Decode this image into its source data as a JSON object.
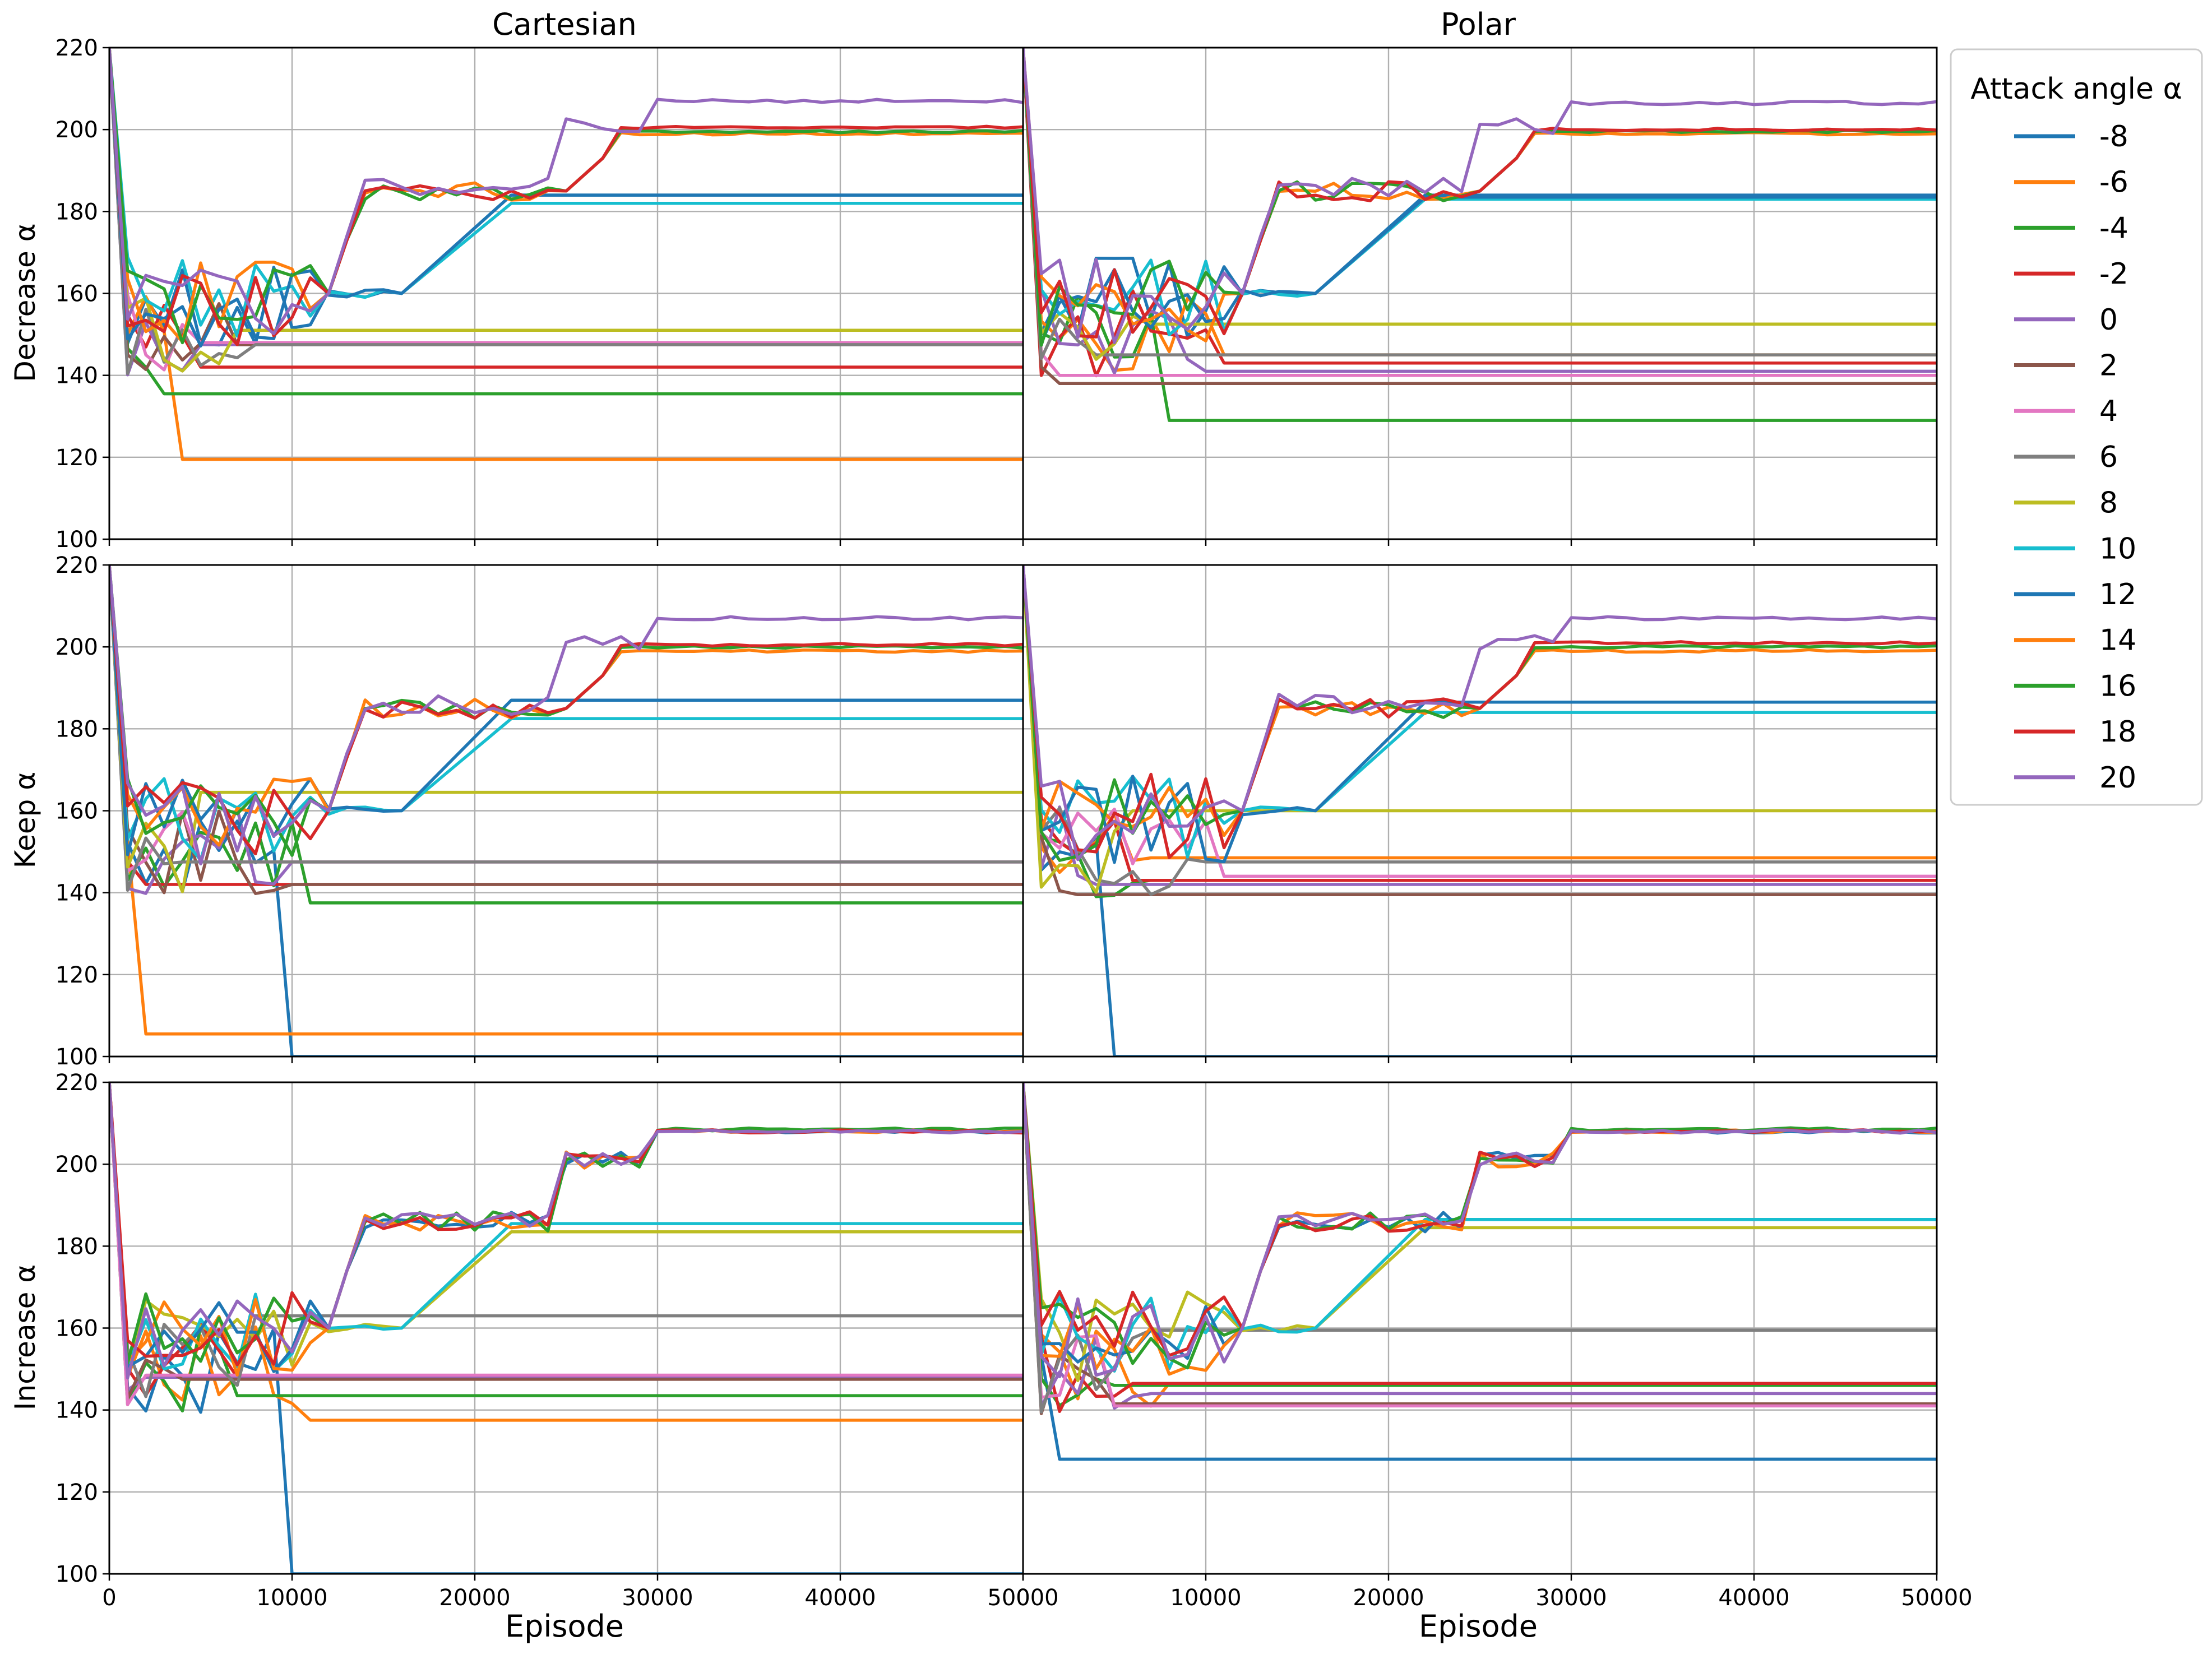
{
  "figure": {
    "column_titles": [
      "Cartesian",
      "Polar"
    ],
    "row_labels": [
      "Decrease α",
      "Keep α",
      "Increase α"
    ],
    "xlabel": "Episode",
    "x_ticks": [
      "0",
      "10000",
      "20000",
      "30000",
      "40000",
      "50000"
    ],
    "y_ticks": [
      "100",
      "120",
      "140",
      "160",
      "180",
      "200",
      "220"
    ],
    "legend_title": "Attack angle α",
    "legend_position": "right"
  },
  "chart_data": {
    "type": "line",
    "layout": "3 rows x 2 columns",
    "xlim": [
      0,
      50000
    ],
    "ylim": [
      100,
      220
    ],
    "grid": true,
    "x_step": 1000,
    "series_meta": [
      {
        "name": "-8",
        "color": "#1f77b4"
      },
      {
        "name": "-6",
        "color": "#ff7f0e"
      },
      {
        "name": "-4",
        "color": "#2ca02c"
      },
      {
        "name": "-2",
        "color": "#d62728"
      },
      {
        "name": "0",
        "color": "#9467bd"
      },
      {
        "name": "2",
        "color": "#8c564b"
      },
      {
        "name": "4",
        "color": "#e377c2"
      },
      {
        "name": "6",
        "color": "#7f7f7f"
      },
      {
        "name": "8",
        "color": "#bcbd22"
      },
      {
        "name": "10",
        "color": "#17becf"
      },
      {
        "name": "12",
        "color": "#1f77b4"
      },
      {
        "name": "14",
        "color": "#ff7f0e"
      },
      {
        "name": "16",
        "color": "#2ca02c"
      },
      {
        "name": "18",
        "color": "#d62728"
      },
      {
        "name": "20",
        "color": "#9467bd"
      }
    ],
    "panels": [
      {
        "row": "Decrease α",
        "column": "Cartesian",
        "final_values": [
          184,
          119.5,
          135.5,
          142,
          147.5,
          147.5,
          148,
          147.5,
          151,
          182,
          184,
          199,
          199.5,
          200.5,
          207
        ]
      },
      {
        "row": "Decrease α",
        "column": "Polar",
        "final_values": [
          184,
          145,
          129,
          143,
          141,
          138,
          140,
          145,
          152.5,
          183,
          183.5,
          199,
          199.5,
          200,
          206.5
        ]
      },
      {
        "row": "Keep α",
        "column": "Cartesian",
        "final_values": [
          100,
          105.5,
          137.5,
          142,
          147.5,
          142,
          147.5,
          147.5,
          164.5,
          182.5,
          187,
          199,
          200,
          200.5,
          207
        ]
      },
      {
        "row": "Keep α",
        "column": "Polar",
        "final_values": [
          100,
          148.5,
          143,
          143,
          142,
          139.5,
          144,
          147.5,
          160,
          184,
          186.5,
          199,
          200,
          201,
          207
        ]
      },
      {
        "row": "Increase α",
        "column": "Cartesian",
        "final_values": [
          100,
          137.5,
          143.5,
          148,
          148,
          147.5,
          148.5,
          163,
          183.5,
          185.5,
          208,
          208,
          208.5,
          208,
          208
        ]
      },
      {
        "row": "Increase α",
        "column": "Polar",
        "final_values": [
          128,
          146.5,
          146,
          146.5,
          144,
          141.5,
          141,
          159.5,
          184.5,
          186.5,
          208,
          208,
          208.5,
          208,
          208
        ]
      }
    ]
  }
}
